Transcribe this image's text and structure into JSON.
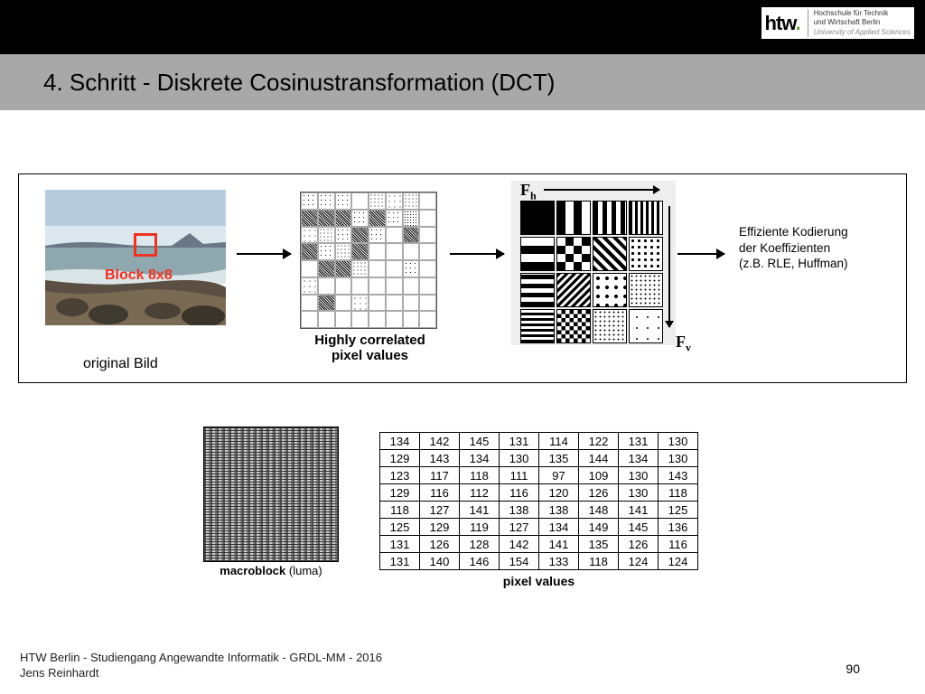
{
  "logo": {
    "brand_prefix": "htw",
    "brand_dot": ".",
    "line1": "Hochschule für Technik",
    "line2": "und Wirtschaft Berlin",
    "line3": "University of Applied Sciences"
  },
  "title": "4. Schritt - Diskrete Cosinustransformation (DCT)",
  "block_label": "Block 8x8",
  "original_label": "original Bild",
  "grid1_caption_l1": "Highly correlated",
  "grid1_caption_l2": "pixel values",
  "fh_label": "F",
  "fh_sub": "h",
  "fv_label": "F",
  "fv_sub": "v",
  "eff": {
    "l1": "Effiziente Kodierung",
    "l2": "der Koeffizienten",
    "l3": "(z.B. RLE, Huffman)"
  },
  "macroblock": {
    "label": "macroblock",
    "luma": "(luma)"
  },
  "pixel_values": {
    "caption": "pixel values",
    "rows": [
      [
        134,
        142,
        145,
        131,
        114,
        122,
        131,
        130
      ],
      [
        129,
        143,
        134,
        130,
        135,
        144,
        134,
        130
      ],
      [
        123,
        117,
        118,
        111,
        97,
        109,
        130,
        143
      ],
      [
        129,
        116,
        112,
        116,
        120,
        126,
        130,
        118
      ],
      [
        118,
        127,
        141,
        138,
        138,
        148,
        141,
        125
      ],
      [
        125,
        129,
        119,
        127,
        134,
        149,
        145,
        136
      ],
      [
        131,
        126,
        128,
        142,
        141,
        135,
        126,
        116
      ],
      [
        131,
        140,
        146,
        154,
        133,
        118,
        124,
        124
      ]
    ]
  },
  "footer": {
    "l1": "HTW Berlin - Studiengang Angewandte Informatik - GRDL-MM - 2016",
    "l2": "Jens Reinhardt"
  },
  "page": "90",
  "landscape": {
    "sky": "#b7cddd",
    "sky2": "#dce7ee",
    "sea": "#8fa8b0",
    "foam": "#e9eef0",
    "rock": "#5a4f42",
    "rock2": "#7a6a54",
    "hill": "#6b7785"
  },
  "grid1_shades": [
    0.45,
    0.5,
    0.55,
    0.35,
    0.6,
    0.4,
    0.65,
    0.3,
    0.95,
    0.9,
    0.92,
    0.55,
    0.88,
    0.45,
    0.85,
    0.25,
    0.4,
    0.6,
    0.5,
    0.95,
    0.55,
    0.3,
    0.9,
    0.35,
    0.94,
    0.55,
    0.7,
    0.97,
    0.3,
    0.2,
    0.15,
    0.1,
    0.3,
    0.98,
    0.92,
    0.65,
    0.25,
    0.15,
    0.55,
    0.08,
    0.4,
    0.35,
    0.3,
    0.25,
    0.2,
    0.15,
    0.1,
    0.05,
    0.25,
    0.96,
    0.2,
    0.4,
    0.12,
    0.3,
    0.08,
    0.04,
    0.2,
    0.15,
    0.12,
    0.1,
    0.08,
    0.06,
    0.04,
    0.02
  ],
  "dct_patterns": [
    "solid",
    "vstripe2",
    "vstripe3",
    "vstripe4",
    "hstripe2",
    "check2",
    "diag1",
    "dots-md",
    "hstripe3",
    "diag2",
    "dots-lg",
    "dots-sm",
    "hstripe4",
    "check3",
    "dots-sm",
    "sparse"
  ]
}
